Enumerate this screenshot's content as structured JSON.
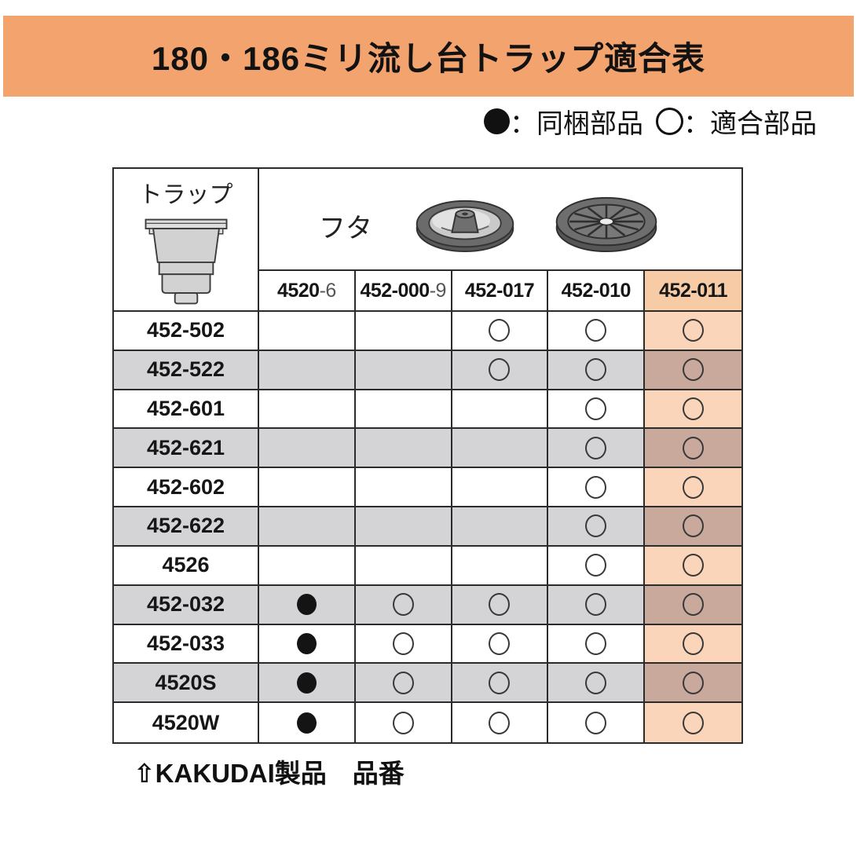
{
  "title": "180・186ミリ流し台トラップ適合表",
  "legend": {
    "included_label": "：同梱部品",
    "compatible_label": "：適合部品"
  },
  "table": {
    "trap_header": "トラップ",
    "lid_header": "フタ",
    "columns": [
      {
        "main": "4520",
        "suffix": "-6",
        "highlight": false
      },
      {
        "main": "452-000",
        "suffix": "-9",
        "highlight": false
      },
      {
        "main": "452-017",
        "suffix": "",
        "highlight": false
      },
      {
        "main": "452-010",
        "suffix": "",
        "highlight": false
      },
      {
        "main": "452-011",
        "suffix": "",
        "highlight": true
      }
    ],
    "rows": [
      {
        "label": "452-502",
        "cells": [
          "",
          "",
          "compatible",
          "compatible",
          "compatible"
        ]
      },
      {
        "label": "452-522",
        "cells": [
          "",
          "",
          "compatible",
          "compatible",
          "compatible"
        ]
      },
      {
        "label": "452-601",
        "cells": [
          "",
          "",
          "",
          "compatible",
          "compatible"
        ]
      },
      {
        "label": "452-621",
        "cells": [
          "",
          "",
          "",
          "compatible",
          "compatible"
        ]
      },
      {
        "label": "452-602",
        "cells": [
          "",
          "",
          "",
          "compatible",
          "compatible"
        ]
      },
      {
        "label": "452-622",
        "cells": [
          "",
          "",
          "",
          "compatible",
          "compatible"
        ]
      },
      {
        "label": "4526",
        "cells": [
          "",
          "",
          "",
          "compatible",
          "compatible"
        ]
      },
      {
        "label": "452-032",
        "cells": [
          "included",
          "compatible",
          "compatible",
          "compatible",
          "compatible"
        ]
      },
      {
        "label": "452-033",
        "cells": [
          "included",
          "compatible",
          "compatible",
          "compatible",
          "compatible"
        ]
      },
      {
        "label": "4520S",
        "cells": [
          "included",
          "compatible",
          "compatible",
          "compatible",
          "compatible"
        ]
      },
      {
        "label": "4520W",
        "cells": [
          "included",
          "compatible",
          "compatible",
          "compatible",
          "compatible"
        ]
      }
    ]
  },
  "footer": {
    "text": "⇧KAKUDAI製品　品番"
  },
  "colors": {
    "banner_orange": "#F2A36E",
    "row_gray": "#D4D4D6",
    "highlight_light": "#FAD5B9",
    "highlight_dark": "#C8A99B",
    "highlight_header": "#F6CBA6",
    "border": "#2B2B2B"
  }
}
